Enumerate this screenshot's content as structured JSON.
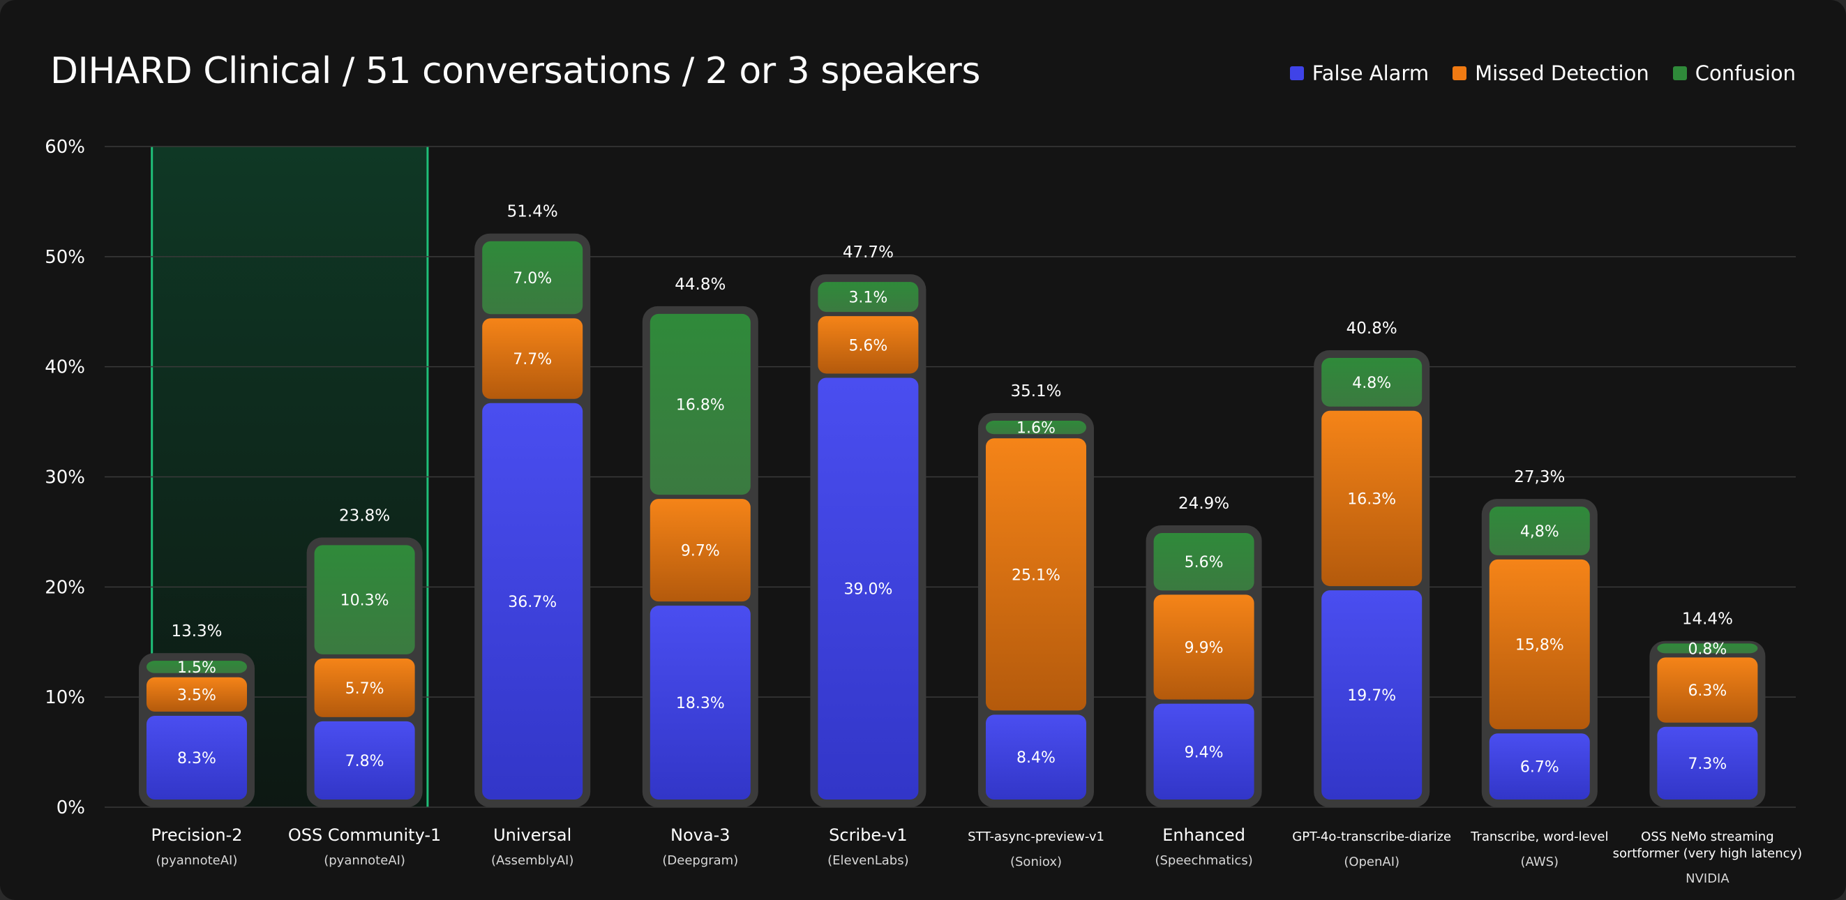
{
  "chart_data": {
    "type": "bar",
    "stacked": true,
    "title": "DIHARD Clinical / 51 conversations / 2 or 3 speakers",
    "ylim": [
      0,
      60
    ],
    "yticks": [
      0,
      10,
      20,
      30,
      40,
      50,
      60
    ],
    "ytick_labels": [
      "0%",
      "10%",
      "20%",
      "30%",
      "40%",
      "50%",
      "60%"
    ],
    "highlight_range": [
      0,
      1
    ],
    "series": [
      {
        "name": "False Alarm",
        "color": "#3f43e8",
        "values": [
          8.3,
          7.8,
          36.7,
          18.3,
          39.0,
          8.4,
          9.4,
          19.7,
          6.7,
          7.3
        ],
        "labels": [
          "8.3%",
          "7.8%",
          "36.7%",
          "18.3%",
          "39.0%",
          "8.4%",
          "9.4%",
          "19.7%",
          "6.7%",
          "7.3%"
        ]
      },
      {
        "name": "Missed Detection",
        "color": "#f07a12",
        "values": [
          3.5,
          5.7,
          7.7,
          9.7,
          5.6,
          25.1,
          9.9,
          16.3,
          15.8,
          6.3
        ],
        "labels": [
          "3.5%",
          "5.7%",
          "7.7%",
          "9.7%",
          "5.6%",
          "25.1%",
          "9.9%",
          "16.3%",
          "15,8%",
          "6.3%"
        ]
      },
      {
        "name": "Confusion",
        "color": "#2f8a3a",
        "values": [
          1.5,
          10.3,
          7.0,
          16.8,
          3.1,
          1.6,
          5.6,
          4.8,
          4.8,
          0.8
        ],
        "labels": [
          "1.5%",
          "10.3%",
          "7.0%",
          "16.8%",
          "3.1%",
          "1.6%",
          "5.6%",
          "4.8%",
          "4,8%",
          "0.8%"
        ]
      }
    ],
    "totals": [
      13.3,
      23.8,
      51.4,
      44.8,
      47.7,
      35.1,
      24.9,
      40.8,
      27.3,
      14.4
    ],
    "total_labels": [
      "13.3%",
      "23.8%",
      "51.4%",
      "44.8%",
      "47.7%",
      "35.1%",
      "24.9%",
      "40.8%",
      "27,3%",
      "14.4%"
    ],
    "categories": [
      {
        "name": [
          "Precision-2"
        ],
        "provider": [
          "(pyannoteAI)"
        ]
      },
      {
        "name": [
          "OSS Community-1"
        ],
        "provider": [
          "(pyannoteAI)"
        ]
      },
      {
        "name": [
          "Universal"
        ],
        "provider": [
          "(AssemblyAI)"
        ]
      },
      {
        "name": [
          "Nova-3"
        ],
        "provider": [
          "(Deepgram)"
        ]
      },
      {
        "name": [
          "Scribe-v1"
        ],
        "provider": [
          "(ElevenLabs)"
        ]
      },
      {
        "name": [
          "STT-async-preview-v1"
        ],
        "provider": [
          "(Soniox)"
        ],
        "small": true
      },
      {
        "name": [
          "Enhanced"
        ],
        "provider": [
          "(Speechmatics)"
        ]
      },
      {
        "name": [
          "GPT-4o-transcribe-diarize"
        ],
        "provider": [
          "(OpenAI)"
        ],
        "small": true
      },
      {
        "name": [
          "Transcribe, word-level"
        ],
        "provider": [
          "(AWS)"
        ],
        "small": true
      },
      {
        "name": [
          "OSS NeMo streaming",
          "sortformer (very high latency)"
        ],
        "provider": [
          "NVIDIA"
        ],
        "small": true
      }
    ]
  },
  "legend": [
    {
      "label": "False Alarm",
      "color": "#3f43e8"
    },
    {
      "label": "Missed Detection",
      "color": "#f07a12"
    },
    {
      "label": "Confusion",
      "color": "#2f8a3a"
    }
  ]
}
